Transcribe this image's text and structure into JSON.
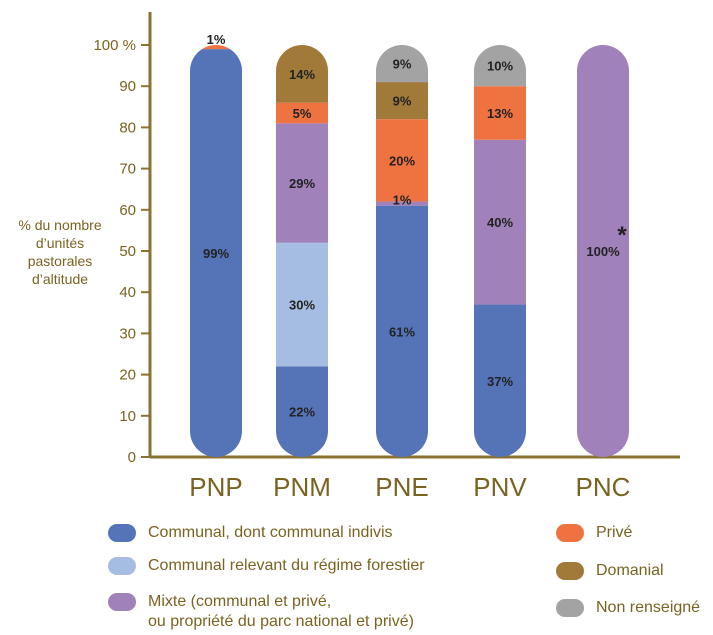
{
  "chart_data": {
    "type": "bar",
    "stacked": true,
    "ylabel_lines": [
      "% du nombre",
      "d’unités",
      "pastorales",
      "d’altitude"
    ],
    "yticks": [
      "0",
      "10",
      "20",
      "30",
      "40",
      "50",
      "60",
      "70",
      "80",
      "90",
      "100 %"
    ],
    "ylim": [
      0,
      100
    ],
    "categories": [
      "PNP",
      "PNM",
      "PNE",
      "PNV",
      "PNC"
    ],
    "series": [
      {
        "name": "Communal, dont communal indivis",
        "color": "#5574b8",
        "values": [
          99,
          22,
          61,
          37,
          0
        ]
      },
      {
        "name": "Communal relevant du régime forestier",
        "color": "#a5bde2",
        "values": [
          0,
          30,
          0,
          0,
          0
        ]
      },
      {
        "name": "Mixte (communal et privé,\nou propriété du parc national et privé)",
        "color": "#a081b9",
        "values": [
          0,
          29,
          1,
          40,
          100
        ]
      },
      {
        "name": "Privé",
        "color": "#ef7341",
        "values": [
          1,
          5,
          20,
          13,
          0
        ]
      },
      {
        "name": "Domanial",
        "color": "#a17a3a",
        "values": [
          0,
          14,
          9,
          0,
          0
        ]
      },
      {
        "name": "Non renseigné",
        "color": "#a3a3a3",
        "values": [
          0,
          0,
          9,
          10,
          0
        ]
      }
    ],
    "data_labels": [
      [
        "99%",
        "",
        "",
        "1%",
        "",
        ""
      ],
      [
        "22%",
        "30%",
        "29%",
        "5%",
        "14%",
        ""
      ],
      [
        "61%",
        "",
        "1%",
        "20%",
        "9%",
        "9%"
      ],
      [
        "37%",
        "",
        "40%",
        "13%",
        "",
        "10%"
      ],
      [
        "",
        "",
        "100%",
        "",
        "",
        ""
      ]
    ],
    "annotation": "*",
    "legend_position": "bottom",
    "grid": false
  }
}
